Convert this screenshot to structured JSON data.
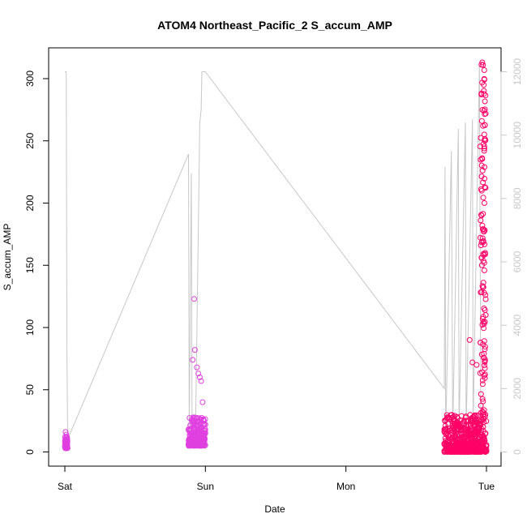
{
  "chart_data": {
    "type": "scatter",
    "title": "ATOM4 Northeast_Pacific_2 S_accum_AMP",
    "xlabel": "Date",
    "ylabel": "S_accum_AMP",
    "x_ticks": [
      "Sat",
      "Sun",
      "Mon",
      "Tue"
    ],
    "xlim_days": [
      0,
      3.0
    ],
    "ylim": [
      0,
      316
    ],
    "y_ticks": [
      0,
      50,
      100,
      150,
      200,
      250,
      300
    ],
    "y2lim": [
      0,
      12100
    ],
    "y2_ticks": [
      0,
      2000,
      4000,
      6000,
      8000,
      10000,
      12000
    ],
    "grid": false,
    "legend": "none",
    "series": [
      {
        "kind": "points",
        "axis": "left",
        "color_low": "#e040e0",
        "color_high": "#ff0066",
        "clusters": [
          {
            "x_start": 0.0,
            "x_end": 0.02,
            "y_typical": [
              3,
              12
            ],
            "peaks": [
              [
                0.005,
                16
              ],
              [
                0.01,
                14
              ],
              [
                0.015,
                12
              ]
            ]
          },
          {
            "x_start": 0.88,
            "x_end": 1.0,
            "y_typical": [
              5,
              28
            ],
            "peaks": [
              [
                0.92,
                123
              ],
              [
                0.91,
                74
              ],
              [
                0.925,
                82
              ],
              [
                0.94,
                68
              ],
              [
                0.95,
                63
              ],
              [
                0.96,
                60
              ],
              [
                0.97,
                57
              ],
              [
                0.98,
                40
              ]
            ]
          },
          {
            "x_start": 2.7,
            "x_end": 3.0,
            "y_typical": [
              0,
              30
            ],
            "peaks": [
              [
                2.88,
                90
              ],
              [
                2.9,
                72
              ],
              [
                2.93,
                70
              ],
              [
                2.97,
                313
              ],
              [
                2.975,
                311
              ],
              [
                2.965,
                288
              ],
              [
                2.985,
                200
              ],
              [
                2.99,
                160
              ],
              [
                2.995,
                110
              ]
            ]
          }
        ]
      },
      {
        "kind": "line",
        "axis": "right",
        "color": "#c8c8c8",
        "points": [
          [
            0.0,
            12000
          ],
          [
            0.01,
            12000
          ],
          [
            0.015,
            3000
          ],
          [
            0.02,
            400
          ],
          [
            0.88,
            9400
          ],
          [
            0.885,
            600
          ],
          [
            0.9,
            8800
          ],
          [
            0.905,
            700
          ],
          [
            0.93,
            700
          ],
          [
            0.96,
            10400
          ],
          [
            0.97,
            10800
          ],
          [
            0.975,
            12000
          ],
          [
            1.0,
            12000
          ],
          [
            2.7,
            2000
          ],
          [
            2.705,
            9000
          ],
          [
            2.71,
            400
          ],
          [
            2.75,
            9500
          ],
          [
            2.76,
            600
          ],
          [
            2.8,
            10200
          ],
          [
            2.805,
            700
          ],
          [
            2.85,
            10400
          ],
          [
            2.855,
            600
          ],
          [
            2.9,
            10500
          ],
          [
            2.905,
            800
          ],
          [
            2.95,
            12200
          ],
          [
            2.96,
            800
          ]
        ]
      }
    ]
  }
}
